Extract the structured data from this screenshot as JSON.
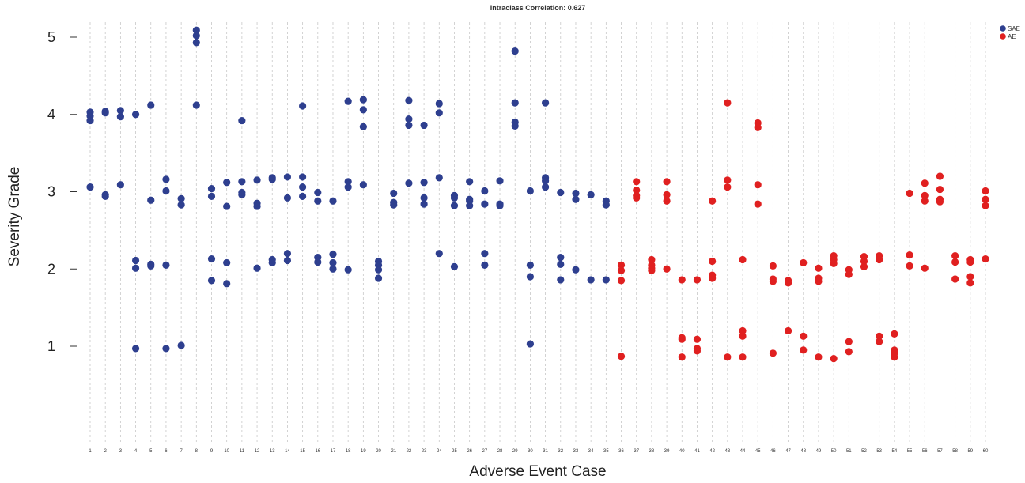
{
  "chart_data": {
    "type": "scatter",
    "title": "Intraclass Correlation: 0.627",
    "xlabel": "Adverse Event Case",
    "ylabel": "Severity Grade",
    "x_ticks": [
      1,
      2,
      3,
      4,
      5,
      6,
      7,
      8,
      9,
      10,
      11,
      12,
      13,
      14,
      15,
      16,
      17,
      18,
      19,
      20,
      21,
      22,
      23,
      24,
      25,
      26,
      27,
      28,
      29,
      30,
      31,
      32,
      33,
      34,
      35,
      36,
      37,
      38,
      39,
      40,
      41,
      42,
      43,
      44,
      45,
      46,
      47,
      48,
      49,
      50,
      51,
      52,
      53,
      54,
      55,
      56,
      57,
      58,
      59,
      60
    ],
    "y_ticks": [
      1,
      2,
      3,
      4,
      5
    ],
    "xlim": [
      1,
      60
    ],
    "ylim": [
      0,
      5
    ],
    "grid": "vertical dashed lines",
    "legend_position": "top-right",
    "series": [
      {
        "name": "SAE",
        "color": "#2e3f8f",
        "points": [
          [
            1,
            4.03
          ],
          [
            1,
            3.98
          ],
          [
            1,
            3.92
          ],
          [
            1,
            3.06
          ],
          [
            2,
            4.04
          ],
          [
            2,
            4.02
          ],
          [
            2,
            2.96
          ],
          [
            2,
            2.94
          ],
          [
            3,
            4.05
          ],
          [
            3,
            3.97
          ],
          [
            3,
            3.09
          ],
          [
            4,
            4.0
          ],
          [
            4,
            2.11
          ],
          [
            4,
            2.01
          ],
          [
            4,
            0.97
          ],
          [
            5,
            4.12
          ],
          [
            5,
            2.89
          ],
          [
            5,
            2.06
          ],
          [
            5,
            2.04
          ],
          [
            6,
            3.16
          ],
          [
            6,
            3.01
          ],
          [
            6,
            2.05
          ],
          [
            6,
            0.97
          ],
          [
            7,
            2.91
          ],
          [
            7,
            2.83
          ],
          [
            7,
            1.01
          ],
          [
            8,
            5.09
          ],
          [
            8,
            5.02
          ],
          [
            8,
            4.93
          ],
          [
            8,
            4.12
          ],
          [
            9,
            3.04
          ],
          [
            9,
            2.94
          ],
          [
            9,
            2.13
          ],
          [
            9,
            1.85
          ],
          [
            10,
            3.12
          ],
          [
            10,
            2.81
          ],
          [
            10,
            2.08
          ],
          [
            10,
            1.81
          ],
          [
            11,
            3.92
          ],
          [
            11,
            3.13
          ],
          [
            11,
            2.99
          ],
          [
            11,
            2.96
          ],
          [
            12,
            3.15
          ],
          [
            12,
            2.85
          ],
          [
            12,
            2.81
          ],
          [
            12,
            2.01
          ],
          [
            13,
            3.18
          ],
          [
            13,
            3.16
          ],
          [
            13,
            2.12
          ],
          [
            13,
            2.08
          ],
          [
            14,
            3.19
          ],
          [
            14,
            2.92
          ],
          [
            14,
            2.2
          ],
          [
            14,
            2.11
          ],
          [
            15,
            4.11
          ],
          [
            15,
            3.19
          ],
          [
            15,
            3.06
          ],
          [
            15,
            2.94
          ],
          [
            16,
            2.99
          ],
          [
            16,
            2.88
          ],
          [
            16,
            2.15
          ],
          [
            16,
            2.09
          ],
          [
            17,
            2.88
          ],
          [
            17,
            2.19
          ],
          [
            17,
            2.08
          ],
          [
            17,
            2.0
          ],
          [
            18,
            4.17
          ],
          [
            18,
            3.13
          ],
          [
            18,
            3.06
          ],
          [
            18,
            1.99
          ],
          [
            19,
            4.19
          ],
          [
            19,
            4.06
          ],
          [
            19,
            3.84
          ],
          [
            19,
            3.09
          ],
          [
            20,
            2.1
          ],
          [
            20,
            2.05
          ],
          [
            20,
            1.99
          ],
          [
            20,
            1.88
          ],
          [
            21,
            2.98
          ],
          [
            21,
            2.86
          ],
          [
            21,
            2.83
          ],
          [
            22,
            4.18
          ],
          [
            22,
            3.94
          ],
          [
            22,
            3.86
          ],
          [
            22,
            3.11
          ],
          [
            23,
            3.86
          ],
          [
            23,
            3.12
          ],
          [
            23,
            2.92
          ],
          [
            23,
            2.84
          ],
          [
            24,
            4.14
          ],
          [
            24,
            4.02
          ],
          [
            24,
            3.18
          ],
          [
            24,
            2.2
          ],
          [
            25,
            2.95
          ],
          [
            25,
            2.92
          ],
          [
            25,
            2.82
          ],
          [
            25,
            2.03
          ],
          [
            26,
            3.13
          ],
          [
            26,
            2.9
          ],
          [
            26,
            2.88
          ],
          [
            26,
            2.82
          ],
          [
            27,
            3.01
          ],
          [
            27,
            2.84
          ],
          [
            27,
            2.2
          ],
          [
            27,
            2.05
          ],
          [
            28,
            3.14
          ],
          [
            28,
            2.84
          ],
          [
            28,
            2.82
          ],
          [
            29,
            4.82
          ],
          [
            29,
            4.15
          ],
          [
            29,
            3.9
          ],
          [
            29,
            3.85
          ],
          [
            30,
            3.01
          ],
          [
            30,
            2.05
          ],
          [
            30,
            1.9
          ],
          [
            30,
            1.03
          ],
          [
            31,
            4.15
          ],
          [
            31,
            3.18
          ],
          [
            31,
            3.14
          ],
          [
            31,
            3.06
          ],
          [
            32,
            2.99
          ],
          [
            32,
            2.15
          ],
          [
            32,
            2.06
          ],
          [
            32,
            1.86
          ],
          [
            33,
            2.98
          ],
          [
            33,
            2.9
          ],
          [
            33,
            1.99
          ],
          [
            34,
            2.96
          ],
          [
            34,
            1.86
          ],
          [
            35,
            2.88
          ],
          [
            35,
            2.83
          ],
          [
            35,
            1.86
          ]
        ]
      },
      {
        "name": "AE",
        "color": "#e02020",
        "points": [
          [
            36,
            2.05
          ],
          [
            36,
            1.98
          ],
          [
            36,
            1.85
          ],
          [
            36,
            0.87
          ],
          [
            37,
            3.13
          ],
          [
            37,
            3.02
          ],
          [
            37,
            2.95
          ],
          [
            37,
            2.92
          ],
          [
            38,
            2.12
          ],
          [
            38,
            2.05
          ],
          [
            38,
            2.01
          ],
          [
            38,
            1.98
          ],
          [
            39,
            3.13
          ],
          [
            39,
            2.96
          ],
          [
            39,
            2.88
          ],
          [
            39,
            2.0
          ],
          [
            40,
            1.86
          ],
          [
            40,
            1.11
          ],
          [
            40,
            1.09
          ],
          [
            40,
            0.86
          ],
          [
            41,
            1.86
          ],
          [
            41,
            1.09
          ],
          [
            41,
            0.97
          ],
          [
            41,
            0.94
          ],
          [
            42,
            2.88
          ],
          [
            42,
            2.1
          ],
          [
            42,
            1.92
          ],
          [
            42,
            1.88
          ],
          [
            43,
            4.15
          ],
          [
            43,
            3.15
          ],
          [
            43,
            3.06
          ],
          [
            43,
            0.86
          ],
          [
            44,
            2.12
          ],
          [
            44,
            1.2
          ],
          [
            44,
            1.13
          ],
          [
            44,
            0.86
          ],
          [
            45,
            3.89
          ],
          [
            45,
            3.83
          ],
          [
            45,
            3.09
          ],
          [
            45,
            2.84
          ],
          [
            46,
            2.04
          ],
          [
            46,
            1.87
          ],
          [
            46,
            1.84
          ],
          [
            46,
            0.91
          ],
          [
            47,
            1.85
          ],
          [
            47,
            1.82
          ],
          [
            47,
            1.2
          ],
          [
            48,
            2.08
          ],
          [
            48,
            1.13
          ],
          [
            48,
            0.95
          ],
          [
            49,
            2.01
          ],
          [
            49,
            1.88
          ],
          [
            49,
            1.84
          ],
          [
            49,
            0.86
          ],
          [
            50,
            2.17
          ],
          [
            50,
            2.12
          ],
          [
            50,
            2.07
          ],
          [
            50,
            0.84
          ],
          [
            51,
            1.99
          ],
          [
            51,
            1.93
          ],
          [
            51,
            1.06
          ],
          [
            51,
            0.93
          ],
          [
            52,
            2.16
          ],
          [
            52,
            2.1
          ],
          [
            52,
            2.03
          ],
          [
            53,
            2.17
          ],
          [
            53,
            2.12
          ],
          [
            53,
            1.13
          ],
          [
            53,
            1.06
          ],
          [
            54,
            1.16
          ],
          [
            54,
            0.95
          ],
          [
            54,
            0.91
          ],
          [
            54,
            0.86
          ],
          [
            55,
            2.98
          ],
          [
            55,
            2.18
          ],
          [
            55,
            2.04
          ],
          [
            56,
            3.11
          ],
          [
            56,
            2.95
          ],
          [
            56,
            2.88
          ],
          [
            56,
            2.01
          ],
          [
            57,
            3.2
          ],
          [
            57,
            3.03
          ],
          [
            57,
            2.9
          ],
          [
            57,
            2.87
          ],
          [
            58,
            2.17
          ],
          [
            58,
            2.09
          ],
          [
            58,
            1.87
          ],
          [
            59,
            2.12
          ],
          [
            59,
            2.09
          ],
          [
            59,
            1.9
          ],
          [
            59,
            1.82
          ],
          [
            60,
            3.01
          ],
          [
            60,
            2.9
          ],
          [
            60,
            2.82
          ],
          [
            60,
            2.13
          ]
        ]
      }
    ]
  }
}
